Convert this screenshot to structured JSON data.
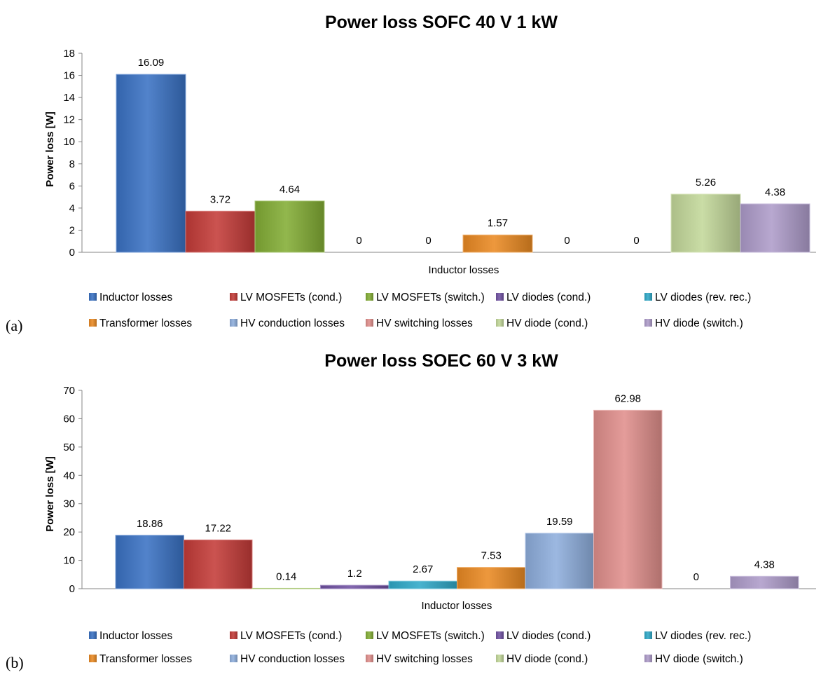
{
  "panels": [
    {
      "letter": "(a)",
      "chart_data": {
        "type": "bar",
        "title": "Power loss SOFC 40 V  1 kW",
        "xlabel": "",
        "ylabel": "Power loss [W]",
        "categories": [
          "Inductor losses"
        ],
        "ylim": [
          0,
          18
        ],
        "yticks": [
          0,
          2,
          4,
          6,
          8,
          10,
          12,
          14,
          16,
          18
        ],
        "grid": false,
        "legend_position": "bottom",
        "series": [
          {
            "name": "Inductor losses",
            "values": [
              16.09
            ],
            "color": "#3a72c4"
          },
          {
            "name": "LV MOSFETs (cond.)",
            "values": [
              3.72
            ],
            "color": "#c43b38"
          },
          {
            "name": "LV MOSFETs (switch.)",
            "values": [
              4.64
            ],
            "color": "#83ad35"
          },
          {
            "name": "LV diodes (cond.)",
            "values": [
              0
            ],
            "color": "#7152a3"
          },
          {
            "name": "LV diodes (rev. rec.)",
            "values": [
              0
            ],
            "color": "#2fa9c8"
          },
          {
            "name": "Transformer losses",
            "values": [
              1.57
            ],
            "color": "#ea8a23"
          },
          {
            "name": "HV conduction losses",
            "values": [
              0
            ],
            "color": "#8eaedd"
          },
          {
            "name": "HV switching losses",
            "values": [
              0
            ],
            "color": "#e08f8c"
          },
          {
            "name": "HV diode (cond.)",
            "values": [
              5.26
            ],
            "color": "#c3d89a"
          },
          {
            "name": "HV diode (switch.)",
            "values": [
              4.38
            ],
            "color": "#ae9cca"
          }
        ],
        "data_labels": [
          "16.09",
          "3.72",
          "4.64",
          "0",
          "0",
          "1.57",
          "0",
          "0",
          "5.26",
          "4.38"
        ]
      }
    },
    {
      "letter": "(b)",
      "chart_data": {
        "type": "bar",
        "title": "Power loss SOEC 60 V  3 kW",
        "xlabel": "",
        "ylabel": "Power loss [W]",
        "categories": [
          "Inductor losses"
        ],
        "ylim": [
          0,
          70
        ],
        "yticks": [
          0,
          10,
          20,
          30,
          40,
          50,
          60,
          70
        ],
        "grid": false,
        "legend_position": "bottom",
        "series": [
          {
            "name": "Inductor losses",
            "values": [
              18.86
            ],
            "color": "#3a72c4"
          },
          {
            "name": "LV MOSFETs (cond.)",
            "values": [
              17.22
            ],
            "color": "#c43b38"
          },
          {
            "name": "LV MOSFETs (switch.)",
            "values": [
              0.14
            ],
            "color": "#83ad35"
          },
          {
            "name": "LV diodes (cond.)",
            "values": [
              1.2
            ],
            "color": "#7152a3"
          },
          {
            "name": "LV diodes (rev. rec.)",
            "values": [
              2.67
            ],
            "color": "#2fa9c8"
          },
          {
            "name": "Transformer losses",
            "values": [
              7.53
            ],
            "color": "#ea8a23"
          },
          {
            "name": "HV conduction losses",
            "values": [
              19.59
            ],
            "color": "#8eaedd"
          },
          {
            "name": "HV switching losses",
            "values": [
              62.98
            ],
            "color": "#e08f8c"
          },
          {
            "name": "HV diode (cond.)",
            "values": [
              0
            ],
            "color": "#c3d89a"
          },
          {
            "name": "HV diode (switch.)",
            "values": [
              4.38
            ],
            "color": "#ae9cca"
          }
        ],
        "data_labels": [
          "18.86",
          "17.22",
          "0.14",
          "1.2",
          "2.67",
          "7.53",
          "19.59",
          "62.98",
          "0",
          "4.38"
        ]
      }
    }
  ]
}
